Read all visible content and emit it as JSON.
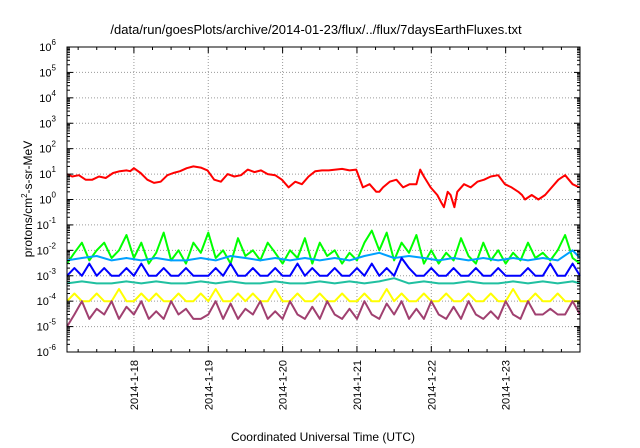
{
  "chart_data": {
    "type": "line",
    "title": "/data/run/goesPlots/archive/2014-01-23/flux/../flux/7daysEarthFluxes.txt",
    "xlabel": "Coordinated Universal Time (UTC)",
    "ylabel": "protons/cm2-s-sr-MeV",
    "ylabel_parts": {
      "pre": "protons/cm",
      "sup": "2",
      "post": "-s-sr-MeV"
    },
    "yscale": "log",
    "ylim": [
      1e-06,
      1000000.0
    ],
    "ytick_exponents": [
      -6,
      -5,
      -4,
      -3,
      -2,
      -1,
      0,
      1,
      2,
      3,
      4,
      5,
      6
    ],
    "ytick_base": "10",
    "xlim": [
      17.1,
      24.0
    ],
    "xtick_values": [
      18,
      19,
      20,
      21,
      22,
      23
    ],
    "xtick_labels": [
      "2014-1-18",
      "2014-1-19",
      "2014-1-20",
      "2014-1-21",
      "2014-1-22",
      "2014-1-23"
    ],
    "grid": true,
    "grid_style": "dotted",
    "series": [
      {
        "color": "#ff0000",
        "x": [
          17.1,
          17.17,
          17.26,
          17.35,
          17.44,
          17.53,
          17.62,
          17.72,
          17.81,
          17.9,
          17.95,
          18.0,
          18.09,
          18.18,
          18.27,
          18.36,
          18.45,
          18.53,
          18.62,
          18.71,
          18.8,
          18.9,
          18.99,
          19.08,
          19.17,
          19.26,
          19.35,
          19.44,
          19.53,
          19.62,
          19.71,
          19.8,
          19.9,
          19.99,
          20.08,
          20.17,
          20.26,
          20.35,
          20.44,
          20.53,
          20.62,
          20.71,
          20.8,
          20.9,
          20.99,
          21.08,
          21.17,
          21.26,
          21.3,
          21.35,
          21.44,
          21.53,
          21.62,
          21.71,
          21.8,
          21.85,
          21.9,
          21.99,
          22.08,
          22.13,
          22.17,
          22.22,
          22.26,
          22.31,
          22.35,
          22.44,
          22.53,
          22.62,
          22.71,
          22.8,
          22.9,
          22.99,
          23.08,
          23.17,
          23.22,
          23.26,
          23.35,
          23.44,
          23.53,
          23.62,
          23.71,
          23.8,
          23.9,
          23.99
        ],
        "y": [
          10,
          8,
          9,
          6,
          6,
          8,
          7,
          11,
          13,
          14,
          13,
          17,
          11,
          6,
          4.5,
          5,
          9,
          11,
          13,
          17,
          20,
          18,
          14,
          6,
          5,
          10,
          8,
          9,
          15,
          12,
          14,
          10,
          9,
          6,
          3,
          5,
          4,
          8,
          13,
          14,
          14,
          15,
          16,
          14,
          15,
          3,
          4,
          2,
          2,
          3,
          5,
          6,
          3,
          4,
          4,
          15,
          8,
          3,
          1.5,
          0.8,
          0.5,
          2,
          1.5,
          0.5,
          2,
          4,
          3,
          5,
          6,
          8,
          9,
          4,
          3,
          2,
          1.5,
          1,
          1.5,
          1,
          1.5,
          3,
          6,
          9,
          4,
          3
        ]
      },
      {
        "color": "#00ff00",
        "x": [
          17.1,
          17.2,
          17.3,
          17.4,
          17.5,
          17.6,
          17.7,
          17.8,
          17.9,
          18.0,
          18.1,
          18.2,
          18.3,
          18.4,
          18.5,
          18.6,
          18.7,
          18.8,
          18.9,
          19.0,
          19.1,
          19.2,
          19.3,
          19.4,
          19.5,
          19.6,
          19.7,
          19.8,
          19.9,
          20.0,
          20.1,
          20.2,
          20.3,
          20.4,
          20.5,
          20.6,
          20.7,
          20.8,
          20.9,
          21.0,
          21.1,
          21.2,
          21.3,
          21.4,
          21.5,
          21.6,
          21.7,
          21.8,
          21.9,
          22.0,
          22.1,
          22.2,
          22.3,
          22.4,
          22.5,
          22.6,
          22.7,
          22.8,
          22.9,
          23.0,
          23.1,
          23.2,
          23.3,
          23.4,
          23.5,
          23.6,
          23.7,
          23.8,
          23.9,
          24.0
        ],
        "y": [
          0.003,
          0.008,
          0.02,
          0.004,
          0.01,
          0.02,
          0.005,
          0.01,
          0.04,
          0.005,
          0.02,
          0.003,
          0.008,
          0.05,
          0.004,
          0.01,
          0.003,
          0.02,
          0.008,
          0.05,
          0.005,
          0.01,
          0.003,
          0.03,
          0.006,
          0.01,
          0.004,
          0.02,
          0.008,
          0.003,
          0.01,
          0.005,
          0.03,
          0.003,
          0.02,
          0.006,
          0.01,
          0.003,
          0.008,
          0.004,
          0.02,
          0.06,
          0.01,
          0.05,
          0.004,
          0.02,
          0.008,
          0.04,
          0.003,
          0.01,
          0.003,
          0.008,
          0.004,
          0.03,
          0.006,
          0.003,
          0.02,
          0.004,
          0.01,
          0.003,
          0.008,
          0.004,
          0.02,
          0.005,
          0.008,
          0.004,
          0.01,
          0.04,
          0.005,
          0.003
        ]
      },
      {
        "color": "#00a0ff",
        "x": [
          17.1,
          17.3,
          17.5,
          17.7,
          17.9,
          18.1,
          18.3,
          18.5,
          18.7,
          18.9,
          19.1,
          19.3,
          19.5,
          19.7,
          19.9,
          20.1,
          20.3,
          20.5,
          20.7,
          20.9,
          21.1,
          21.3,
          21.5,
          21.7,
          21.9,
          22.1,
          22.3,
          22.5,
          22.7,
          22.9,
          23.1,
          23.3,
          23.5,
          23.7,
          23.9,
          24.0
        ],
        "y": [
          0.004,
          0.005,
          0.006,
          0.004,
          0.005,
          0.004,
          0.005,
          0.004,
          0.004,
          0.005,
          0.004,
          0.006,
          0.005,
          0.004,
          0.005,
          0.004,
          0.005,
          0.004,
          0.005,
          0.004,
          0.006,
          0.008,
          0.005,
          0.006,
          0.005,
          0.004,
          0.005,
          0.004,
          0.005,
          0.004,
          0.005,
          0.004,
          0.005,
          0.004,
          0.01,
          0.005
        ]
      },
      {
        "color": "#0000ff",
        "x": [
          17.1,
          17.2,
          17.3,
          17.4,
          17.5,
          17.6,
          17.7,
          17.8,
          17.9,
          18.0,
          18.1,
          18.2,
          18.3,
          18.4,
          18.5,
          18.6,
          18.7,
          18.8,
          18.9,
          19.0,
          19.1,
          19.2,
          19.3,
          19.4,
          19.5,
          19.6,
          19.7,
          19.8,
          19.9,
          20.0,
          20.1,
          20.2,
          20.3,
          20.4,
          20.5,
          20.6,
          20.7,
          20.8,
          20.9,
          21.0,
          21.1,
          21.2,
          21.3,
          21.4,
          21.5,
          21.6,
          21.7,
          21.8,
          21.9,
          22.0,
          22.1,
          22.2,
          22.3,
          22.4,
          22.5,
          22.6,
          22.7,
          22.8,
          22.9,
          23.0,
          23.1,
          23.2,
          23.3,
          23.4,
          23.5,
          23.6,
          23.7,
          23.8,
          23.9,
          24.0
        ],
        "y": [
          0.001,
          0.002,
          0.001,
          0.003,
          0.001,
          0.002,
          0.001,
          0.001,
          0.002,
          0.001,
          0.003,
          0.001,
          0.001,
          0.002,
          0.001,
          0.001,
          0.002,
          0.001,
          0.001,
          0.001,
          0.002,
          0.001,
          0.003,
          0.001,
          0.001,
          0.002,
          0.001,
          0.001,
          0.002,
          0.001,
          0.001,
          0.003,
          0.001,
          0.002,
          0.001,
          0.001,
          0.002,
          0.001,
          0.001,
          0.002,
          0.001,
          0.003,
          0.001,
          0.002,
          0.001,
          0.005,
          0.002,
          0.001,
          0.001,
          0.002,
          0.001,
          0.001,
          0.002,
          0.001,
          0.001,
          0.002,
          0.001,
          0.001,
          0.002,
          0.001,
          0.001,
          0.001,
          0.002,
          0.001,
          0.001,
          0.003,
          0.001,
          0.001,
          0.003,
          0.001
        ]
      },
      {
        "color": "#20c0a0",
        "x": [
          17.1,
          17.3,
          17.5,
          17.7,
          17.9,
          18.1,
          18.3,
          18.5,
          18.7,
          18.9,
          19.1,
          19.3,
          19.5,
          19.7,
          19.9,
          20.1,
          20.3,
          20.5,
          20.7,
          20.9,
          21.1,
          21.3,
          21.5,
          21.7,
          21.9,
          22.1,
          22.3,
          22.5,
          22.7,
          22.9,
          23.1,
          23.3,
          23.5,
          23.7,
          23.9,
          24.0
        ],
        "y": [
          0.0005,
          0.0006,
          0.0005,
          0.0005,
          0.0006,
          0.0005,
          0.0006,
          0.0005,
          0.0005,
          0.0006,
          0.0005,
          0.0006,
          0.0005,
          0.0005,
          0.0006,
          0.0005,
          0.0005,
          0.0006,
          0.0005,
          0.0006,
          0.0005,
          0.0006,
          0.0008,
          0.0005,
          0.0006,
          0.0005,
          0.0005,
          0.0006,
          0.0005,
          0.0005,
          0.0006,
          0.0005,
          0.0006,
          0.0005,
          0.0006,
          0.0005
        ]
      },
      {
        "color": "#ffff00",
        "x": [
          17.1,
          17.2,
          17.3,
          17.4,
          17.5,
          17.6,
          17.7,
          17.8,
          17.9,
          18.0,
          18.1,
          18.2,
          18.3,
          18.4,
          18.5,
          18.6,
          18.7,
          18.8,
          18.9,
          19.0,
          19.1,
          19.2,
          19.3,
          19.4,
          19.5,
          19.6,
          19.7,
          19.8,
          19.9,
          20.0,
          20.1,
          20.2,
          20.3,
          20.4,
          20.5,
          20.6,
          20.7,
          20.8,
          20.9,
          21.0,
          21.1,
          21.2,
          21.3,
          21.4,
          21.5,
          21.6,
          21.7,
          21.8,
          21.9,
          22.0,
          22.1,
          22.2,
          22.3,
          22.4,
          22.5,
          22.6,
          22.7,
          22.8,
          22.9,
          23.0,
          23.1,
          23.2,
          23.3,
          23.4,
          23.5,
          23.6,
          23.7,
          23.8,
          23.9,
          24.0
        ],
        "y": [
          0.0001,
          0.0002,
          0.0001,
          0.0001,
          0.0002,
          0.0001,
          0.0001,
          0.0003,
          0.0001,
          0.0001,
          0.0002,
          0.0001,
          0.0002,
          0.0001,
          0.0001,
          0.0002,
          0.0001,
          0.0001,
          0.0002,
          0.0001,
          0.0003,
          0.0001,
          0.0001,
          0.0002,
          0.0001,
          0.0002,
          0.0001,
          0.0001,
          0.0003,
          0.0001,
          0.0001,
          0.0002,
          0.0001,
          0.0001,
          0.0002,
          0.0001,
          0.0001,
          0.0002,
          0.0001,
          0.0001,
          0.0002,
          0.0001,
          0.0001,
          0.0003,
          0.0001,
          0.0002,
          0.0001,
          0.0001,
          0.0002,
          0.0001,
          0.0001,
          0.0002,
          0.0001,
          0.0001,
          0.0002,
          0.0001,
          0.0001,
          0.0002,
          0.0001,
          0.0001,
          0.0003,
          0.0001,
          0.0001,
          0.0002,
          0.0001,
          0.0001,
          0.0002,
          0.0001,
          0.0001,
          0.0001
        ]
      },
      {
        "color": "#a04070",
        "x": [
          17.1,
          17.2,
          17.3,
          17.4,
          17.5,
          17.6,
          17.7,
          17.8,
          17.9,
          18.0,
          18.1,
          18.2,
          18.3,
          18.4,
          18.5,
          18.6,
          18.7,
          18.8,
          18.9,
          19.0,
          19.1,
          19.2,
          19.3,
          19.4,
          19.5,
          19.6,
          19.7,
          19.8,
          19.9,
          20.0,
          20.1,
          20.2,
          20.3,
          20.4,
          20.5,
          20.6,
          20.7,
          20.8,
          20.9,
          21.0,
          21.1,
          21.2,
          21.3,
          21.4,
          21.5,
          21.6,
          21.7,
          21.8,
          21.9,
          22.0,
          22.1,
          22.2,
          22.3,
          22.4,
          22.5,
          22.6,
          22.7,
          22.8,
          22.9,
          23.0,
          23.1,
          23.2,
          23.3,
          23.4,
          23.5,
          23.6,
          23.7,
          23.8,
          23.9,
          24.0
        ],
        "y": [
          1e-05,
          3e-05,
          0.0001,
          2e-05,
          5e-05,
          3e-05,
          0.0001,
          2e-05,
          6e-05,
          3e-05,
          0.0001,
          2e-05,
          4e-05,
          2e-05,
          0.0001,
          3e-05,
          5e-05,
          2e-05,
          2e-05,
          3e-05,
          0.0001,
          2e-05,
          8e-05,
          2e-05,
          5e-05,
          3e-05,
          0.0001,
          2e-05,
          4e-05,
          2e-05,
          0.0001,
          3e-05,
          2e-05,
          6e-05,
          2e-05,
          0.0001,
          3e-05,
          2e-05,
          5e-05,
          2e-05,
          0.0001,
          3e-05,
          2e-05,
          8e-05,
          3e-05,
          0.0001,
          2e-05,
          5e-05,
          2e-05,
          0.0001,
          3e-05,
          2e-05,
          6e-05,
          2e-05,
          0.0001,
          3e-05,
          2e-05,
          4e-05,
          2e-05,
          0.0001,
          3e-05,
          2e-05,
          0.0001,
          3e-05,
          3e-05,
          5e-05,
          3e-05,
          3e-05,
          0.0001,
          3e-05
        ]
      }
    ]
  }
}
